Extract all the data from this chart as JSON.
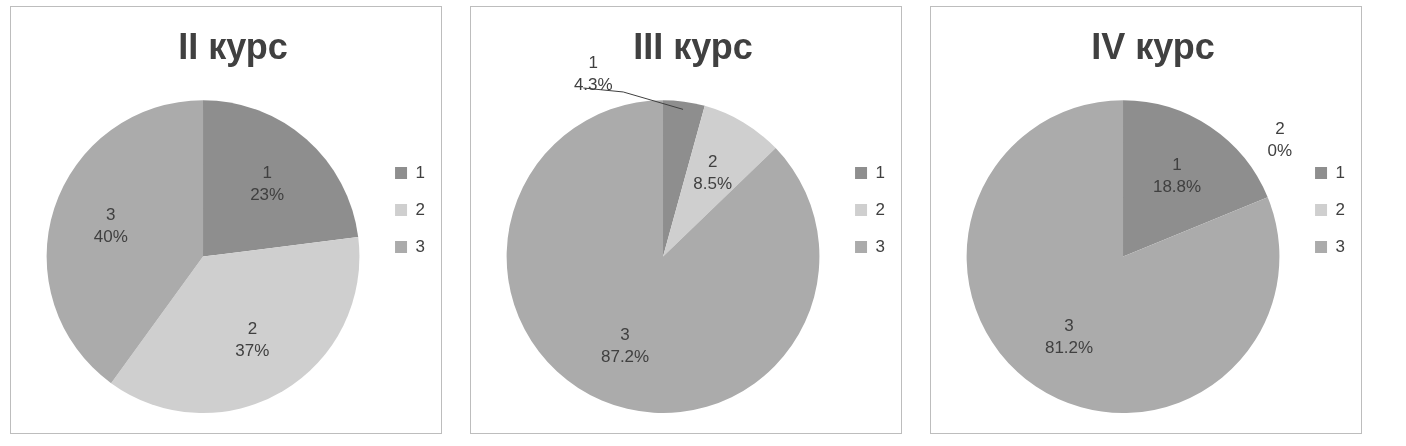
{
  "chart_data": [
    {
      "type": "pie",
      "title": "II курс",
      "categories": [
        "1",
        "2",
        "3"
      ],
      "values": [
        23,
        37,
        40
      ],
      "value_labels": [
        "23%",
        "37%",
        "40%"
      ],
      "colors": [
        "#8e8e8e",
        "#cfcfcf",
        "#ababab"
      ],
      "legend": "right"
    },
    {
      "type": "pie",
      "title": "III курс",
      "categories": [
        "1",
        "2",
        "3"
      ],
      "values": [
        4.3,
        8.5,
        87.2
      ],
      "value_labels": [
        "4.3%",
        "8.5%",
        "87.2%"
      ],
      "colors": [
        "#8e8e8e",
        "#cfcfcf",
        "#ababab"
      ],
      "legend": "right"
    },
    {
      "type": "pie",
      "title": "IV курс",
      "categories": [
        "1",
        "2",
        "3"
      ],
      "values": [
        18.8,
        0,
        81.2
      ],
      "value_labels": [
        "18.8%",
        "0%",
        "81.2%"
      ],
      "colors": [
        "#8e8e8e",
        "#cfcfcf",
        "#ababab"
      ],
      "legend": "right"
    }
  ]
}
